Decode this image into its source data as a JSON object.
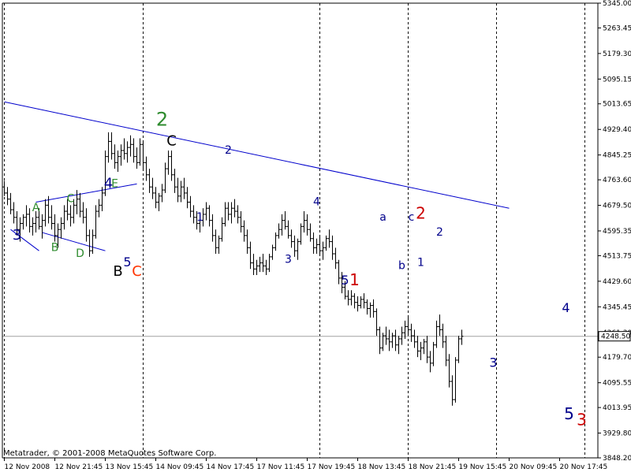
{
  "footer_text": "Metatrader, © 2001-2008 MetaQuotes Software Corp.",
  "chart_data": {
    "type": "bar",
    "style": "ohlc",
    "grid": "vertical dotted session separators",
    "y_axis_side": "right",
    "ylim": [
      3848.2,
      5345.0
    ],
    "y_ticks": [
      5345.0,
      5263.45,
      5179.3,
      5095.15,
      5013.65,
      4929.4,
      4845.25,
      4763.6,
      4679.5,
      4595.35,
      4513.75,
      4429.6,
      4345.45,
      4261.3,
      4179.7,
      4095.55,
      4013.95,
      3929.8,
      3848.2
    ],
    "y_tick_labels": [
      "5345.00",
      "5263.45",
      "5179.30",
      "5095.15",
      "5013.65",
      "4929.40",
      "4845.25",
      "4763.60",
      "4679.50",
      "4595.35",
      "4513.75",
      "4429.60",
      "4345.45",
      "4261.30",
      "4179.70",
      "4095.55",
      "4013.95",
      "3929.80",
      "3848.20"
    ],
    "current_price": 4248.5,
    "current_price_label": "4248.50",
    "x_ticks": [
      {
        "label": "12 Nov 2008",
        "bar": 0
      },
      {
        "label": "12 Nov 21:45",
        "bar": 16
      },
      {
        "label": "13 Nov 15:45",
        "bar": 32
      },
      {
        "label": "14 Nov 09:45",
        "bar": 48
      },
      {
        "label": "14 Nov 17:45",
        "bar": 64
      },
      {
        "label": "17 Nov 11:45",
        "bar": 80
      },
      {
        "label": "17 Nov 19:45",
        "bar": 96
      },
      {
        "label": "18 Nov 13:45",
        "bar": 112
      },
      {
        "label": "18 Nov 21:45",
        "bar": 128
      },
      {
        "label": "19 Nov 15:45",
        "bar": 144
      },
      {
        "label": "20 Nov 09:45",
        "bar": 160
      },
      {
        "label": "20 Nov 17:45",
        "bar": 176
      }
    ],
    "session_separators": [
      0,
      44,
      100,
      128,
      156,
      184
    ],
    "bars": [
      [
        4740,
        4760,
        4710,
        4720
      ],
      [
        4720,
        4740,
        4680,
        4700
      ],
      [
        4700,
        4720,
        4650,
        4665
      ],
      [
        4665,
        4690,
        4620,
        4640
      ],
      [
        4640,
        4660,
        4580,
        4600
      ],
      [
        4600,
        4640,
        4560,
        4620
      ],
      [
        4620,
        4650,
        4600,
        4640
      ],
      [
        4640,
        4680,
        4610,
        4650
      ],
      [
        4650,
        4670,
        4590,
        4610
      ],
      [
        4610,
        4640,
        4580,
        4620
      ],
      [
        4620,
        4660,
        4590,
        4640
      ],
      [
        4640,
        4670,
        4600,
        4610
      ],
      [
        4610,
        4650,
        4570,
        4630
      ],
      [
        4630,
        4700,
        4610,
        4680
      ],
      [
        4680,
        4710,
        4620,
        4640
      ],
      [
        4640,
        4680,
        4600,
        4620
      ],
      [
        4620,
        4650,
        4560,
        4580
      ],
      [
        4580,
        4620,
        4540,
        4600
      ],
      [
        4600,
        4640,
        4570,
        4620
      ],
      [
        4620,
        4680,
        4600,
        4660
      ],
      [
        4660,
        4700,
        4630,
        4650
      ],
      [
        4650,
        4680,
        4610,
        4640
      ],
      [
        4640,
        4700,
        4620,
        4680
      ],
      [
        4680,
        4730,
        4650,
        4700
      ],
      [
        4700,
        4720,
        4640,
        4660
      ],
      [
        4660,
        4690,
        4620,
        4640
      ],
      [
        4640,
        4670,
        4560,
        4580
      ],
      [
        4580,
        4600,
        4510,
        4530
      ],
      [
        4530,
        4600,
        4520,
        4580
      ],
      [
        4580,
        4680,
        4570,
        4660
      ],
      [
        4660,
        4700,
        4640,
        4680
      ],
      [
        4680,
        4740,
        4660,
        4720
      ],
      [
        4720,
        4860,
        4710,
        4840
      ],
      [
        4840,
        4920,
        4820,
        4890
      ],
      [
        4890,
        4920,
        4830,
        4850
      ],
      [
        4850,
        4880,
        4800,
        4820
      ],
      [
        4820,
        4860,
        4790,
        4840
      ],
      [
        4840,
        4880,
        4810,
        4860
      ],
      [
        4860,
        4900,
        4830,
        4850
      ],
      [
        4850,
        4890,
        4820,
        4870
      ],
      [
        4870,
        4910,
        4840,
        4880
      ],
      [
        4880,
        4900,
        4820,
        4840
      ],
      [
        4840,
        4870,
        4800,
        4820
      ],
      [
        4820,
        4900,
        4810,
        4880
      ],
      [
        4880,
        4890,
        4800,
        4820
      ],
      [
        4820,
        4840,
        4760,
        4780
      ],
      [
        4780,
        4800,
        4720,
        4740
      ],
      [
        4740,
        4770,
        4700,
        4720
      ],
      [
        4720,
        4740,
        4670,
        4690
      ],
      [
        4690,
        4720,
        4660,
        4710
      ],
      [
        4710,
        4750,
        4690,
        4730
      ],
      [
        4730,
        4820,
        4720,
        4800
      ],
      [
        4800,
        4860,
        4780,
        4840
      ],
      [
        4840,
        4860,
        4760,
        4780
      ],
      [
        4780,
        4800,
        4720,
        4740
      ],
      [
        4740,
        4770,
        4690,
        4710
      ],
      [
        4710,
        4760,
        4690,
        4740
      ],
      [
        4740,
        4770,
        4700,
        4720
      ],
      [
        4720,
        4740,
        4670,
        4690
      ],
      [
        4690,
        4710,
        4640,
        4660
      ],
      [
        4660,
        4680,
        4620,
        4640
      ],
      [
        4640,
        4660,
        4600,
        4620
      ],
      [
        4620,
        4650,
        4590,
        4630
      ],
      [
        4630,
        4670,
        4610,
        4650
      ],
      [
        4650,
        4690,
        4630,
        4670
      ],
      [
        4670,
        4680,
        4610,
        4630
      ],
      [
        4630,
        4650,
        4560,
        4580
      ],
      [
        4580,
        4600,
        4520,
        4540
      ],
      [
        4540,
        4580,
        4520,
        4570
      ],
      [
        4570,
        4640,
        4560,
        4620
      ],
      [
        4620,
        4690,
        4610,
        4670
      ],
      [
        4670,
        4690,
        4630,
        4650
      ],
      [
        4650,
        4690,
        4620,
        4670
      ],
      [
        4670,
        4700,
        4640,
        4660
      ],
      [
        4660,
        4680,
        4620,
        4640
      ],
      [
        4640,
        4660,
        4590,
        4610
      ],
      [
        4610,
        4630,
        4560,
        4580
      ],
      [
        4580,
        4600,
        4520,
        4540
      ],
      [
        4540,
        4560,
        4470,
        4490
      ],
      [
        4490,
        4520,
        4450,
        4470
      ],
      [
        4470,
        4500,
        4450,
        4480
      ],
      [
        4480,
        4510,
        4460,
        4490
      ],
      [
        4490,
        4520,
        4460,
        4480
      ],
      [
        4480,
        4500,
        4450,
        4470
      ],
      [
        4470,
        4520,
        4460,
        4510
      ],
      [
        4510,
        4550,
        4500,
        4540
      ],
      [
        4540,
        4590,
        4530,
        4580
      ],
      [
        4580,
        4620,
        4570,
        4600
      ],
      [
        4600,
        4650,
        4580,
        4630
      ],
      [
        4630,
        4660,
        4600,
        4610
      ],
      [
        4610,
        4630,
        4570,
        4580
      ],
      [
        4580,
        4600,
        4540,
        4560
      ],
      [
        4560,
        4580,
        4510,
        4530
      ],
      [
        4530,
        4570,
        4500,
        4560
      ],
      [
        4560,
        4620,
        4550,
        4610
      ],
      [
        4610,
        4660,
        4590,
        4630
      ],
      [
        4630,
        4650,
        4580,
        4600
      ],
      [
        4600,
        4620,
        4560,
        4570
      ],
      [
        4570,
        4590,
        4520,
        4540
      ],
      [
        4540,
        4570,
        4520,
        4550
      ],
      [
        4550,
        4580,
        4520,
        4530
      ],
      [
        4530,
        4560,
        4500,
        4540
      ],
      [
        4540,
        4580,
        4530,
        4570
      ],
      [
        4570,
        4600,
        4540,
        4560
      ],
      [
        4560,
        4580,
        4500,
        4520
      ],
      [
        4520,
        4540,
        4470,
        4490
      ],
      [
        4490,
        4500,
        4420,
        4440
      ],
      [
        4440,
        4460,
        4390,
        4410
      ],
      [
        4410,
        4430,
        4370,
        4380
      ],
      [
        4380,
        4400,
        4350,
        4370
      ],
      [
        4370,
        4400,
        4350,
        4380
      ],
      [
        4380,
        4390,
        4340,
        4360
      ],
      [
        4360,
        4380,
        4330,
        4350
      ],
      [
        4350,
        4380,
        4340,
        4370
      ],
      [
        4370,
        4390,
        4340,
        4360
      ],
      [
        4360,
        4370,
        4320,
        4340
      ],
      [
        4340,
        4360,
        4310,
        4350
      ],
      [
        4350,
        4370,
        4310,
        4330
      ],
      [
        4330,
        4340,
        4250,
        4270
      ],
      [
        4270,
        4280,
        4190,
        4210
      ],
      [
        4210,
        4260,
        4200,
        4250
      ],
      [
        4250,
        4280,
        4220,
        4240
      ],
      [
        4240,
        4270,
        4200,
        4230
      ],
      [
        4230,
        4260,
        4210,
        4250
      ],
      [
        4250,
        4270,
        4200,
        4220
      ],
      [
        4220,
        4250,
        4190,
        4240
      ],
      [
        4240,
        4280,
        4220,
        4260
      ],
      [
        4260,
        4300,
        4240,
        4280
      ],
      [
        4280,
        4310,
        4250,
        4270
      ],
      [
        4270,
        4290,
        4230,
        4250
      ],
      [
        4250,
        4270,
        4210,
        4230
      ],
      [
        4230,
        4250,
        4180,
        4200
      ],
      [
        4200,
        4230,
        4170,
        4210
      ],
      [
        4210,
        4240,
        4190,
        4230
      ],
      [
        4230,
        4250,
        4160,
        4180
      ],
      [
        4180,
        4200,
        4130,
        4160
      ],
      [
        4160,
        4230,
        4150,
        4220
      ],
      [
        4220,
        4300,
        4210,
        4280
      ],
      [
        4280,
        4320,
        4250,
        4270
      ],
      [
        4270,
        4290,
        4210,
        4230
      ],
      [
        4230,
        4250,
        4150,
        4170
      ],
      [
        4170,
        4190,
        4080,
        4100
      ],
      [
        4100,
        4120,
        4020,
        4040
      ],
      [
        4040,
        4180,
        4030,
        4170
      ],
      [
        4170,
        4250,
        4160,
        4240
      ],
      [
        4240,
        4270,
        4220,
        4248.5
      ]
    ],
    "trendline": {
      "from": {
        "bar": 0,
        "price": 5020
      },
      "to": {
        "bar": 160,
        "price": 4670
      }
    },
    "small_lines": [
      {
        "from": {
          "bar": 2,
          "price": 4600
        },
        "to": {
          "bar": 11,
          "price": 4530
        }
      },
      {
        "from": {
          "bar": 10,
          "price": 4690
        },
        "to": {
          "bar": 42,
          "price": 4750
        }
      },
      {
        "from": {
          "bar": 12,
          "price": 4590
        },
        "to": {
          "bar": 32,
          "price": 4530
        }
      }
    ],
    "annotations": [
      {
        "text": "3",
        "bar": 4,
        "price": 4580,
        "color": "#00008b",
        "size": 18
      },
      {
        "text": "A",
        "bar": 10,
        "price": 4670,
        "color": "#2e8b2e",
        "size": 14
      },
      {
        "text": "B",
        "bar": 16,
        "price": 4540,
        "color": "#2e8b2e",
        "size": 14
      },
      {
        "text": "C",
        "bar": 21,
        "price": 4700,
        "color": "#2e8b2e",
        "size": 14
      },
      {
        "text": "D",
        "bar": 24,
        "price": 4520,
        "color": "#2e8b2e",
        "size": 14
      },
      {
        "text": "4",
        "bar": 33,
        "price": 4750,
        "color": "#00008b",
        "size": 18
      },
      {
        "text": "E",
        "bar": 35,
        "price": 4750,
        "color": "#2e8b2e",
        "size": 14
      },
      {
        "text": "B",
        "bar": 36,
        "price": 4460,
        "color": "#000000",
        "size": 18
      },
      {
        "text": "5",
        "bar": 39,
        "price": 4490,
        "color": "#00008b",
        "size": 16
      },
      {
        "text": "C",
        "bar": 42,
        "price": 4460,
        "color": "#ff3300",
        "size": 18
      },
      {
        "text": "2",
        "bar": 50,
        "price": 4960,
        "color": "#2e8b2e",
        "size": 24
      },
      {
        "text": "C",
        "bar": 53,
        "price": 4890,
        "color": "#000000",
        "size": 18
      },
      {
        "text": "1",
        "bar": 62,
        "price": 4640,
        "color": "#00008b",
        "size": 14
      },
      {
        "text": "2",
        "bar": 71,
        "price": 4860,
        "color": "#00008b",
        "size": 14
      },
      {
        "text": "3",
        "bar": 90,
        "price": 4500,
        "color": "#00008b",
        "size": 14
      },
      {
        "text": "4",
        "bar": 99,
        "price": 4690,
        "color": "#00008b",
        "size": 14
      },
      {
        "text": "5",
        "bar": 108,
        "price": 4430,
        "color": "#00008b",
        "size": 16
      },
      {
        "text": "1",
        "bar": 111,
        "price": 4430,
        "color": "#cc0000",
        "size": 20
      },
      {
        "text": "a",
        "bar": 120,
        "price": 4640,
        "color": "#00008b",
        "size": 14
      },
      {
        "text": "b",
        "bar": 126,
        "price": 4480,
        "color": "#00008b",
        "size": 14
      },
      {
        "text": "c",
        "bar": 129,
        "price": 4640,
        "color": "#00008b",
        "size": 14
      },
      {
        "text": "2",
        "bar": 132,
        "price": 4650,
        "color": "#cc0000",
        "size": 20
      },
      {
        "text": "1",
        "bar": 132,
        "price": 4490,
        "color": "#00008b",
        "size": 14
      },
      {
        "text": "2",
        "bar": 138,
        "price": 4590,
        "color": "#00008b",
        "size": 14
      },
      {
        "text": "3",
        "bar": 155,
        "price": 4160,
        "color": "#00008b",
        "size": 16
      },
      {
        "text": "4",
        "bar": 178,
        "price": 4340,
        "color": "#00008b",
        "size": 16
      },
      {
        "text": "5",
        "bar": 179,
        "price": 3990,
        "color": "#00008b",
        "size": 20
      },
      {
        "text": "3",
        "bar": 183,
        "price": 3970,
        "color": "#cc0000",
        "size": 20
      }
    ]
  }
}
